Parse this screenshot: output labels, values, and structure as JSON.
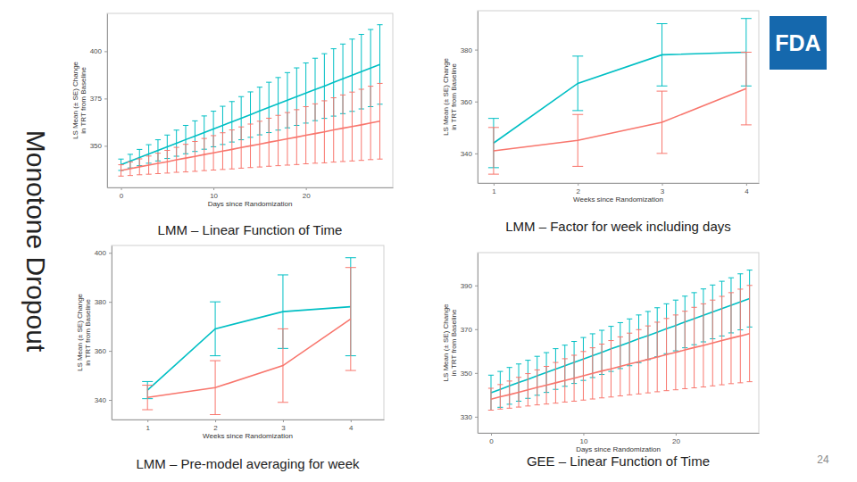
{
  "slide": {
    "side_title": "Monotone Dropout",
    "logo": "FDA",
    "page_number": 24
  },
  "chart_data": [
    {
      "type": "line",
      "title": "LMM – Linear Function of Time",
      "x_label": "Days since Randomization",
      "y_label": [
        "LS Mean (± SE) Change",
        "in TRT from Baseline"
      ],
      "x": [
        0,
        1,
        2,
        3,
        4,
        5,
        6,
        7,
        8,
        9,
        10,
        11,
        12,
        13,
        14,
        15,
        16,
        17,
        18,
        19,
        20,
        21,
        22,
        23,
        24,
        25,
        26,
        27,
        28
      ],
      "xlim": [
        -1.5,
        29.4
      ],
      "xticks": [
        0,
        10,
        20
      ],
      "ylim": [
        328,
        420
      ],
      "yticks": [
        350,
        375,
        400
      ],
      "grid": false,
      "series": [
        {
          "color": "#00BFC4",
          "values": [
            340.0,
            341.9,
            343.8,
            345.7,
            347.6,
            349.5,
            351.4,
            353.3,
            355.1,
            357.0,
            358.9,
            360.8,
            362.7,
            364.6,
            366.5,
            368.4,
            370.3,
            372.2,
            374.1,
            376.0,
            377.9,
            379.8,
            381.6,
            383.5,
            385.4,
            387.3,
            389.2,
            391.1,
            393.0
          ],
          "errors": [
            3.0,
            3.6,
            4.3,
            4.9,
            5.6,
            6.2,
            6.9,
            7.5,
            8.1,
            8.8,
            9.4,
            10.1,
            10.7,
            11.4,
            12.0,
            12.6,
            13.3,
            13.9,
            14.6,
            15.2,
            15.9,
            16.5,
            17.1,
            17.8,
            18.4,
            19.1,
            19.7,
            20.4,
            21.0
          ]
        },
        {
          "color": "#F8766D",
          "values": [
            337.0,
            337.9,
            338.9,
            339.8,
            340.7,
            341.6,
            342.6,
            343.5,
            344.4,
            345.4,
            346.3,
            347.2,
            348.1,
            349.1,
            350.0,
            350.9,
            351.9,
            352.8,
            353.7,
            354.6,
            355.6,
            356.5,
            357.4,
            358.4,
            359.3,
            360.2,
            361.1,
            362.1,
            363.0
          ],
          "errors": [
            3.0,
            3.6,
            4.2,
            4.8,
            5.4,
            6.0,
            6.6,
            7.3,
            7.9,
            8.5,
            9.1,
            9.7,
            10.3,
            10.9,
            11.5,
            12.1,
            12.7,
            13.3,
            13.9,
            14.5,
            15.1,
            15.7,
            16.4,
            17.0,
            17.6,
            18.2,
            18.8,
            19.4,
            20.0
          ]
        }
      ]
    },
    {
      "type": "line",
      "title": "LMM – Factor for week including days",
      "x_label": "Weeks since Randomization",
      "y_label": [
        "LS Mean (± SE) Change",
        "in TRT from Baseline"
      ],
      "x": [
        1,
        2,
        3,
        4
      ],
      "xlim": [
        0.81,
        4.15
      ],
      "xticks": [
        1,
        2,
        3,
        4
      ],
      "ylim": [
        328.6,
        395
      ],
      "yticks": [
        340,
        360,
        380
      ],
      "grid": false,
      "series": [
        {
          "color": "#00BFC4",
          "values": [
            344,
            367,
            378,
            379
          ],
          "errors": [
            9.5,
            10.5,
            12,
            13
          ]
        },
        {
          "color": "#F8766D",
          "values": [
            341,
            345,
            352,
            365
          ],
          "errors": [
            9,
            10,
            12,
            14
          ]
        }
      ]
    },
    {
      "type": "line",
      "title": "LMM – Pre-model averaging for week",
      "x_label": "Weeks since Randomization",
      "y_label": [
        "LS Mean (± SE) Change",
        "in TRT from Baseline"
      ],
      "x": [
        1,
        2,
        3,
        4
      ],
      "xlim": [
        0.47,
        4.49
      ],
      "xticks": [
        1,
        2,
        3,
        4
      ],
      "ylim": [
        332,
        403
      ],
      "yticks": [
        340,
        360,
        380,
        400
      ],
      "grid": false,
      "series": [
        {
          "color": "#00BFC4",
          "values": [
            344,
            369,
            376,
            378
          ],
          "errors": [
            3.5,
            11,
            15,
            20
          ]
        },
        {
          "color": "#F8766D",
          "values": [
            341,
            345,
            354,
            373
          ],
          "errors": [
            5,
            11,
            15,
            21
          ]
        }
      ]
    },
    {
      "type": "line",
      "title": "GEE – Linear Function of Time",
      "x_label": "Days since Randomization",
      "y_label": [
        "LS Mean (± SE) Change",
        "in TRT from Baseline"
      ],
      "x": [
        0,
        1,
        2,
        3,
        4,
        5,
        6,
        7,
        8,
        9,
        10,
        11,
        12,
        13,
        14,
        15,
        16,
        17,
        18,
        19,
        20,
        21,
        22,
        23,
        24,
        25,
        26,
        27,
        28
      ],
      "xlim": [
        -1.45,
        29
      ],
      "xticks": [
        0,
        10,
        20
      ],
      "ylim": [
        322.6,
        405
      ],
      "yticks": [
        330,
        350,
        370,
        390
      ],
      "grid": false,
      "series": [
        {
          "color": "#00BFC4",
          "values": [
            341.0,
            342.5,
            344.1,
            345.6,
            347.1,
            348.7,
            350.2,
            351.8,
            353.3,
            354.8,
            356.4,
            357.9,
            359.4,
            361.0,
            362.5,
            364.0,
            365.6,
            367.1,
            368.6,
            370.2,
            371.7,
            373.3,
            374.8,
            376.3,
            377.9,
            379.4,
            380.9,
            382.5,
            384.0
          ],
          "errors": [
            8.0,
            8.2,
            8.4,
            8.5,
            8.7,
            8.9,
            9.1,
            9.3,
            9.4,
            9.6,
            9.8,
            10.0,
            10.1,
            10.3,
            10.5,
            10.7,
            10.9,
            11.0,
            11.2,
            11.4,
            11.6,
            11.8,
            11.9,
            12.1,
            12.3,
            12.5,
            12.6,
            12.8,
            13.0
          ]
        },
        {
          "color": "#F8766D",
          "values": [
            338.0,
            339.1,
            340.1,
            341.2,
            342.3,
            343.4,
            344.4,
            345.5,
            346.6,
            347.6,
            348.7,
            349.8,
            350.9,
            351.9,
            353.0,
            354.1,
            355.1,
            356.2,
            357.3,
            358.4,
            359.4,
            360.5,
            361.6,
            362.6,
            363.7,
            364.8,
            365.9,
            366.9,
            368.0
          ],
          "errors": [
            5.0,
            5.6,
            6.2,
            6.8,
            7.4,
            8.0,
            8.6,
            9.3,
            9.9,
            10.5,
            11.1,
            11.7,
            12.3,
            12.9,
            13.5,
            14.1,
            14.7,
            15.3,
            15.9,
            16.5,
            17.1,
            17.7,
            18.4,
            19.0,
            19.6,
            20.2,
            20.8,
            21.4,
            22.0
          ]
        }
      ]
    }
  ]
}
